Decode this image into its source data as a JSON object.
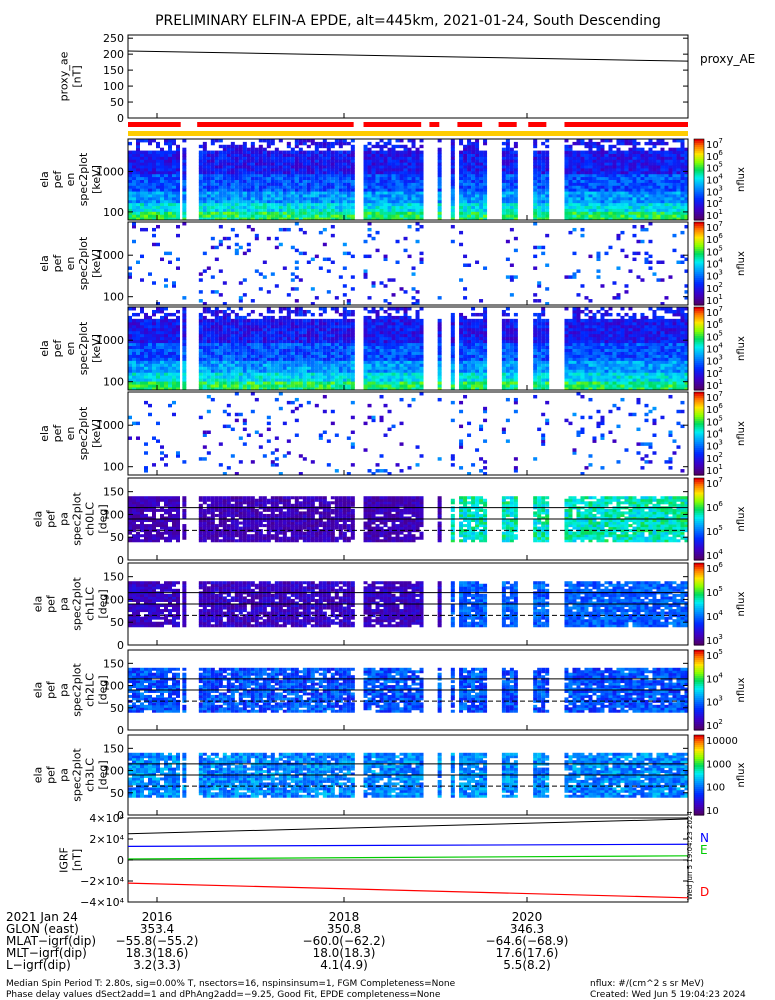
{
  "title": "PRELIMINARY ELFIN-A EPDE, alt=445km, 2021-01-24, South Descending",
  "panels": [
    {
      "id": "proxy-ae",
      "ylabel": [
        "proxy_ae",
        "[nT]"
      ],
      "yticks": [
        "250",
        "200",
        "150",
        "100",
        "50",
        "0"
      ],
      "legend": "proxy_AE"
    },
    {
      "id": "spec-en-1",
      "ylabel": [
        "ela",
        "pef",
        "en",
        "spec2plot",
        "[keV]"
      ],
      "yticks": [
        "1000",
        "100"
      ],
      "cbar_ticks": [
        "10",
        "10",
        "10",
        "10",
        "10",
        "10",
        "10"
      ],
      "cbar_exps": [
        "7",
        "6",
        "5",
        "4",
        "3",
        "2",
        "1"
      ],
      "cbar_label": "nflux"
    },
    {
      "id": "spec-en-2",
      "ylabel": [
        "ela",
        "pef",
        "en",
        "spec2plot",
        "[keV]"
      ],
      "yticks": [
        "1000",
        "100"
      ],
      "cbar_ticks": [
        "10",
        "10",
        "10",
        "10",
        "10",
        "10",
        "10"
      ],
      "cbar_exps": [
        "7",
        "6",
        "5",
        "4",
        "3",
        "2",
        "1"
      ],
      "cbar_label": "nflux"
    },
    {
      "id": "spec-en-3",
      "ylabel": [
        "ela",
        "pef",
        "en",
        "spec2plot",
        "[keV]"
      ],
      "yticks": [
        "1000",
        "100"
      ],
      "cbar_ticks": [
        "10",
        "10",
        "10",
        "10",
        "10",
        "10",
        "10"
      ],
      "cbar_exps": [
        "7",
        "6",
        "5",
        "4",
        "3",
        "2",
        "1"
      ],
      "cbar_label": "nflux"
    },
    {
      "id": "spec-en-4",
      "ylabel": [
        "ela",
        "pef",
        "en",
        "spec2plot",
        "[keV]"
      ],
      "yticks": [
        "1000",
        "100"
      ],
      "cbar_ticks": [
        "10",
        "10",
        "10",
        "10",
        "10",
        "10",
        "10"
      ],
      "cbar_exps": [
        "7",
        "6",
        "5",
        "4",
        "3",
        "2",
        "1"
      ],
      "cbar_label": "nflux"
    },
    {
      "id": "pa-ch0",
      "ylabel": [
        "ela",
        "pef",
        "pa",
        "spec2plot",
        "ch0LC",
        "[deg]"
      ],
      "yticks": [
        "150",
        "100",
        "50",
        "0"
      ],
      "cbar_ticks": [
        "10",
        "10",
        "10",
        "10"
      ],
      "cbar_exps": [
        "7",
        "6",
        "5",
        "4"
      ],
      "cbar_label": "nflux"
    },
    {
      "id": "pa-ch1",
      "ylabel": [
        "ela",
        "pef",
        "pa",
        "spec2plot",
        "ch1LC",
        "[deg]"
      ],
      "yticks": [
        "150",
        "100",
        "50",
        "0"
      ],
      "cbar_ticks": [
        "10",
        "10",
        "10",
        "10"
      ],
      "cbar_exps": [
        "6",
        "5",
        "4",
        "3"
      ],
      "cbar_label": "nflux"
    },
    {
      "id": "pa-ch2",
      "ylabel": [
        "ela",
        "pef",
        "pa",
        "spec2plot",
        "ch2LC",
        "[deg]"
      ],
      "yticks": [
        "150",
        "100",
        "50",
        "0"
      ],
      "cbar_ticks": [
        "10",
        "10",
        "10",
        "10"
      ],
      "cbar_exps": [
        "5",
        "4",
        "3",
        "2"
      ],
      "cbar_label": "nflux"
    },
    {
      "id": "pa-ch3",
      "ylabel": [
        "ela",
        "pef",
        "pa",
        "spec2plot",
        "ch3LC",
        "[deg]"
      ],
      "yticks": [
        "150",
        "100",
        "50",
        "0"
      ],
      "cbar_ticks": [
        "10000",
        "1000",
        "100",
        "10"
      ],
      "cbar_exps": [
        "",
        "",
        "",
        ""
      ],
      "cbar_label": "nflux"
    },
    {
      "id": "igrf",
      "ylabel": [
        "IGRF",
        "[nT]"
      ],
      "yticks": [
        "4×10⁴",
        "2×10⁴",
        "0",
        "−2×10⁴",
        "−4×10⁴"
      ],
      "legend": [
        "N",
        "E",
        "D"
      ],
      "legend_colors": [
        "#0000ff",
        "#00cc00",
        "#ff0000"
      ]
    }
  ],
  "xaxis": {
    "row_labels": [
      "2021 Jan 24",
      "GLON (east)",
      "MLAT−igrf(dip)",
      "MLT−igrf(dip)",
      "L−igrf(dip)"
    ],
    "ticks": [
      {
        "time": "2016",
        "values": [
          "353.4",
          "−55.8(−55.2)",
          "18.3(18.6)",
          "3.2(3.3)"
        ]
      },
      {
        "time": "2018",
        "values": [
          "350.8",
          "−60.0(−62.2)",
          "18.0(18.3)",
          "4.1(4.9)"
        ]
      },
      {
        "time": "2020",
        "values": [
          "346.3",
          "−64.6(−68.9)",
          "17.6(17.6)",
          "5.5(8.2)"
        ]
      }
    ]
  },
  "footer": {
    "left_line1": "Median Spin Period T: 2.80s, sig=0.00% T, nsectors=16, nspinsinsum=1, FGM Completeness=None",
    "left_line2": "Phase delay values dSect2add=1 and dPhAng2add=−9.25, Good Fit, EPDE completeness=None",
    "right_line1": "nflux: #/(cm^2 s sr MeV)",
    "right_line2": "Created: Wed Jun  5 19:04:23 2024",
    "side_stamp": "Wed Jun  5 19:04:23 2024"
  },
  "colors": {
    "bar_red": "#ff0000",
    "bar_yellow": "#ffcc00"
  },
  "chart_data": {
    "type": "heatmap",
    "title": "PRELIMINARY ELFIN-A EPDE, alt=445km, 2021-01-24, South Descending",
    "x_range_sec": [
      1950,
      2290
    ],
    "proxy_ae": {
      "x": [
        1950,
        2290
      ],
      "y": [
        210,
        178
      ],
      "ylim": [
        0,
        260
      ]
    },
    "igrf": {
      "ylim": [
        -40000,
        40000
      ],
      "series": [
        {
          "name": "N",
          "x": [
            1950,
            2290
          ],
          "y": [
            13000,
            15000
          ]
        },
        {
          "name": "E",
          "x": [
            1950,
            2290
          ],
          "y": [
            1000,
            4000
          ]
        },
        {
          "name": "D",
          "x": [
            1950,
            2290
          ],
          "y": [
            -22000,
            -36000
          ]
        }
      ],
      "black": {
        "x": [
          1950,
          2290
        ],
        "y": [
          25000,
          39000
        ]
      }
    },
    "red_segments": [
      [
        1950,
        1982
      ],
      [
        1992,
        2087
      ],
      [
        2093,
        2128
      ],
      [
        2133,
        2139
      ],
      [
        2150,
        2165
      ],
      [
        2175,
        2186
      ],
      [
        2193,
        2204
      ],
      [
        2215,
        2290
      ]
    ],
    "data_segments": [
      [
        1950,
        1980
      ],
      [
        1983,
        1985
      ],
      [
        1993,
        2086
      ],
      [
        2093,
        2129
      ],
      [
        2138,
        2139
      ],
      [
        2146,
        2147
      ],
      [
        2151,
        2166
      ],
      [
        2177,
        2185
      ],
      [
        2196,
        2205
      ],
      [
        2215,
        2288
      ]
    ],
    "pa_ref_lines_deg": [
      115,
      90,
      65
    ]
  }
}
